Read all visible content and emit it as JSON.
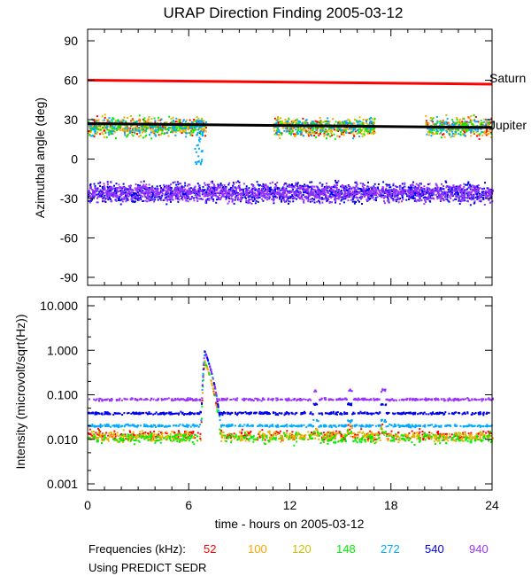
{
  "chart_data": [
    {
      "type": "scatter",
      "title": "URAP Direction Finding  2005-03-12",
      "ylabel": "Azimuthal angle (deg)",
      "xlim": [
        0,
        24
      ],
      "ylim": [
        -90,
        90
      ],
      "yticks": [
        "90",
        "60",
        "30",
        "0",
        "-30",
        "-60",
        "-90"
      ],
      "reference_lines": [
        {
          "name": "Saturn",
          "color": "#ff0000",
          "x": [
            0,
            24
          ],
          "y": [
            60,
            57
          ]
        },
        {
          "name": "Jupiter",
          "color": "#000000",
          "x": [
            0,
            24
          ],
          "y": [
            27,
            24
          ]
        }
      ],
      "clusters": [
        {
          "freqs": [
            "540",
            "940"
          ],
          "center": -25,
          "spread": 8,
          "hours": [
            [
              0,
              24
            ]
          ]
        },
        {
          "freqs": [
            "52",
            "100",
            "120",
            "148",
            "272"
          ],
          "center": 25,
          "spread": 8,
          "hours": [
            [
              0,
              7
            ],
            [
              11,
              17
            ],
            [
              20,
              24
            ]
          ]
        }
      ]
    },
    {
      "type": "scatter",
      "ylabel": "Intensity (microvolt/sqrt(Hz))",
      "yscale": "log",
      "ylim": [
        0.001,
        10
      ],
      "yticks": [
        "10.000",
        "1.000",
        "0.100",
        "0.010",
        "0.001"
      ],
      "xlim": [
        0,
        24
      ],
      "xticks": [
        "0",
        "6",
        "12",
        "18",
        "24"
      ],
      "xlabel": "time - hours on 2005-03-12",
      "baselines": {
        "52": 0.013,
        "100": 0.012,
        "120": 0.012,
        "148": 0.011,
        "272": 0.021,
        "540": 0.04,
        "940": 0.082
      },
      "burst": {
        "start_hour": 6.6,
        "peak_hour": 6.9,
        "end_hour": 8.2,
        "peak": 1.0
      },
      "spikes_hours": [
        13.5,
        15.5,
        17.5
      ]
    }
  ],
  "legend": {
    "label": "Frequencies (kHz):",
    "items": [
      {
        "name": "52",
        "color": "#ff0000"
      },
      {
        "name": "100",
        "color": "#ffa500"
      },
      {
        "name": "120",
        "color": "#cdbe00"
      },
      {
        "name": "148",
        "color": "#00ee00"
      },
      {
        "name": "272",
        "color": "#00aaff"
      },
      {
        "name": "540",
        "color": "#0000ee"
      },
      {
        "name": "940",
        "color": "#9933ff"
      }
    ]
  },
  "footnote": "Using PREDICT SEDR"
}
